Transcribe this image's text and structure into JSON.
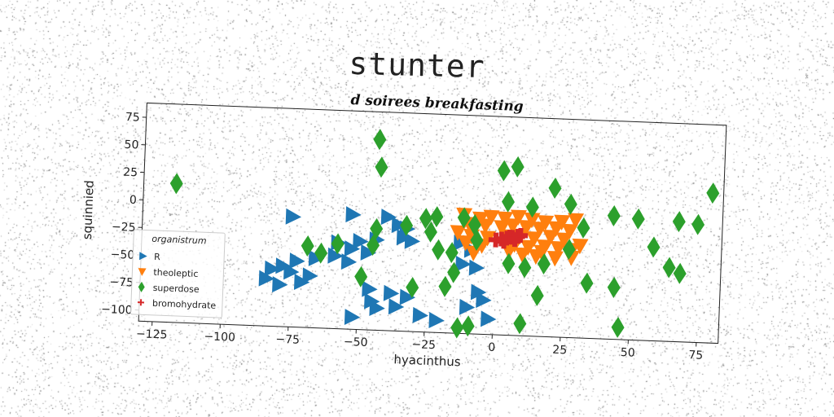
{
  "main_title": "stunter",
  "chart_data": {
    "type": "scatter",
    "title": "d soirees breakfasting",
    "xlabel": "hyacinthus",
    "ylabel": "squinnied",
    "xlim": [
      -130,
      83
    ],
    "ylim": [
      -110,
      88
    ],
    "xticks": [
      -125,
      -100,
      -75,
      -50,
      -25,
      0,
      25,
      50,
      75
    ],
    "yticks": [
      75,
      50,
      25,
      0,
      -25,
      -50,
      -75,
      -100
    ],
    "grid": false,
    "legend": {
      "title": "organistrum",
      "position": "lower-left"
    },
    "colors": {
      "R": "#1f77b4",
      "theoleptic": "#ff7f0e",
      "superdose": "#2ca02c",
      "bromohydrate": "#d62728"
    },
    "series": [
      {
        "name": "R",
        "marker": "triangle-right",
        "points": [
          [
            -75,
            -10
          ],
          [
            -53,
            -6
          ],
          [
            -40,
            -7
          ],
          [
            -36,
            -14
          ],
          [
            -33,
            -17
          ],
          [
            -34,
            -25
          ],
          [
            -31,
            -28
          ],
          [
            -44,
            -28
          ],
          [
            -50,
            -30
          ],
          [
            -58,
            -32
          ],
          [
            -53,
            -37
          ],
          [
            -47,
            -40
          ],
          [
            -59,
            -44
          ],
          [
            -66,
            -47
          ],
          [
            -54,
            -49
          ],
          [
            -73,
            -50
          ],
          [
            -78,
            -55
          ],
          [
            -82,
            -58
          ],
          [
            -75,
            -60
          ],
          [
            -68,
            -63
          ],
          [
            -84,
            -67
          ],
          [
            -71,
            -69
          ],
          [
            -46,
            -73
          ],
          [
            -38,
            -76
          ],
          [
            -32,
            -79
          ],
          [
            -45,
            -84
          ],
          [
            -36,
            -88
          ],
          [
            -43,
            -90
          ],
          [
            -27,
            -95
          ],
          [
            -21,
            -99
          ],
          [
            -13,
            -28
          ],
          [
            -9,
            -34
          ],
          [
            -12,
            -47
          ],
          [
            -7,
            -50
          ],
          [
            -6,
            -72
          ],
          [
            -4,
            -79
          ],
          [
            -10,
            -86
          ],
          [
            -2,
            -96
          ],
          [
            -52,
            -99
          ],
          [
            -79,
            -72
          ]
        ]
      },
      {
        "name": "theoleptic",
        "marker": "triangle-down",
        "points": [
          [
            -12,
            -2
          ],
          [
            -6,
            -5
          ],
          [
            -2,
            -3
          ],
          [
            3,
            -4
          ],
          [
            8,
            -2
          ],
          [
            13,
            -4
          ],
          [
            18,
            -6
          ],
          [
            24,
            -5
          ],
          [
            29,
            -3
          ],
          [
            -10,
            -10
          ],
          [
            -4,
            -11
          ],
          [
            2,
            -12
          ],
          [
            6,
            -10
          ],
          [
            11,
            -11
          ],
          [
            16,
            -12
          ],
          [
            22,
            -11
          ],
          [
            27,
            -13
          ],
          [
            -14,
            -18
          ],
          [
            -9,
            -21
          ],
          [
            -3,
            -22
          ],
          [
            4,
            -20
          ],
          [
            9,
            -19
          ],
          [
            14,
            -21
          ],
          [
            20,
            -19
          ],
          [
            25,
            -21
          ],
          [
            -11,
            -27
          ],
          [
            -5,
            -29
          ],
          [
            7,
            -27
          ],
          [
            12,
            -29
          ],
          [
            18,
            -28
          ],
          [
            23,
            -29
          ],
          [
            28,
            -30
          ],
          [
            -8,
            -36
          ],
          [
            10,
            -36
          ],
          [
            15,
            -37
          ],
          [
            22,
            -38
          ],
          [
            28,
            -37
          ],
          [
            5,
            -33
          ],
          [
            17,
            -33
          ],
          [
            31,
            -26
          ]
        ]
      },
      {
        "name": "superdose",
        "marker": "diamond",
        "points": [
          [
            -118,
            16
          ],
          [
            -44,
            63
          ],
          [
            -43,
            38
          ],
          [
            -44,
            -18
          ],
          [
            -45,
            -33
          ],
          [
            -33,
            -14
          ],
          [
            -26,
            -7
          ],
          [
            -22,
            -5
          ],
          [
            -24,
            -19
          ],
          [
            -21,
            -35
          ],
          [
            -12,
            -5
          ],
          [
            -8,
            -11
          ],
          [
            -7,
            -25
          ],
          [
            -16,
            -37
          ],
          [
            -15,
            -55
          ],
          [
            -18,
            -68
          ],
          [
            -30,
            -70
          ],
          [
            -49,
            -62
          ],
          [
            -69,
            -36
          ],
          [
            -64,
            -42
          ],
          [
            -58,
            -33
          ],
          [
            -13,
            -105
          ],
          [
            -9,
            -103
          ],
          [
            2,
            39
          ],
          [
            7,
            43
          ],
          [
            4,
            11
          ],
          [
            13,
            7
          ],
          [
            21,
            25
          ],
          [
            27,
            11
          ],
          [
            32,
            -10
          ],
          [
            27,
            -30
          ],
          [
            18,
            -44
          ],
          [
            11,
            -48
          ],
          [
            5,
            -45
          ],
          [
            16,
            -73
          ],
          [
            10,
            -99
          ],
          [
            34,
            -60
          ],
          [
            44,
            -63
          ],
          [
            46,
            -99
          ],
          [
            43,
            2
          ],
          [
            52,
            0
          ],
          [
            58,
            -25
          ],
          [
            64,
            -43
          ],
          [
            68,
            -48
          ],
          [
            67,
            -1
          ],
          [
            74,
            -3
          ],
          [
            79,
            26
          ]
        ]
      },
      {
        "name": "bromohydrate",
        "marker": "plus",
        "points": [
          [
            0,
            -24
          ],
          [
            2,
            -23
          ],
          [
            4,
            -22
          ],
          [
            6,
            -21
          ],
          [
            8,
            -20
          ],
          [
            9,
            -19
          ],
          [
            3,
            -25
          ],
          [
            5,
            -21
          ],
          [
            7,
            -23
          ]
        ]
      }
    ]
  }
}
